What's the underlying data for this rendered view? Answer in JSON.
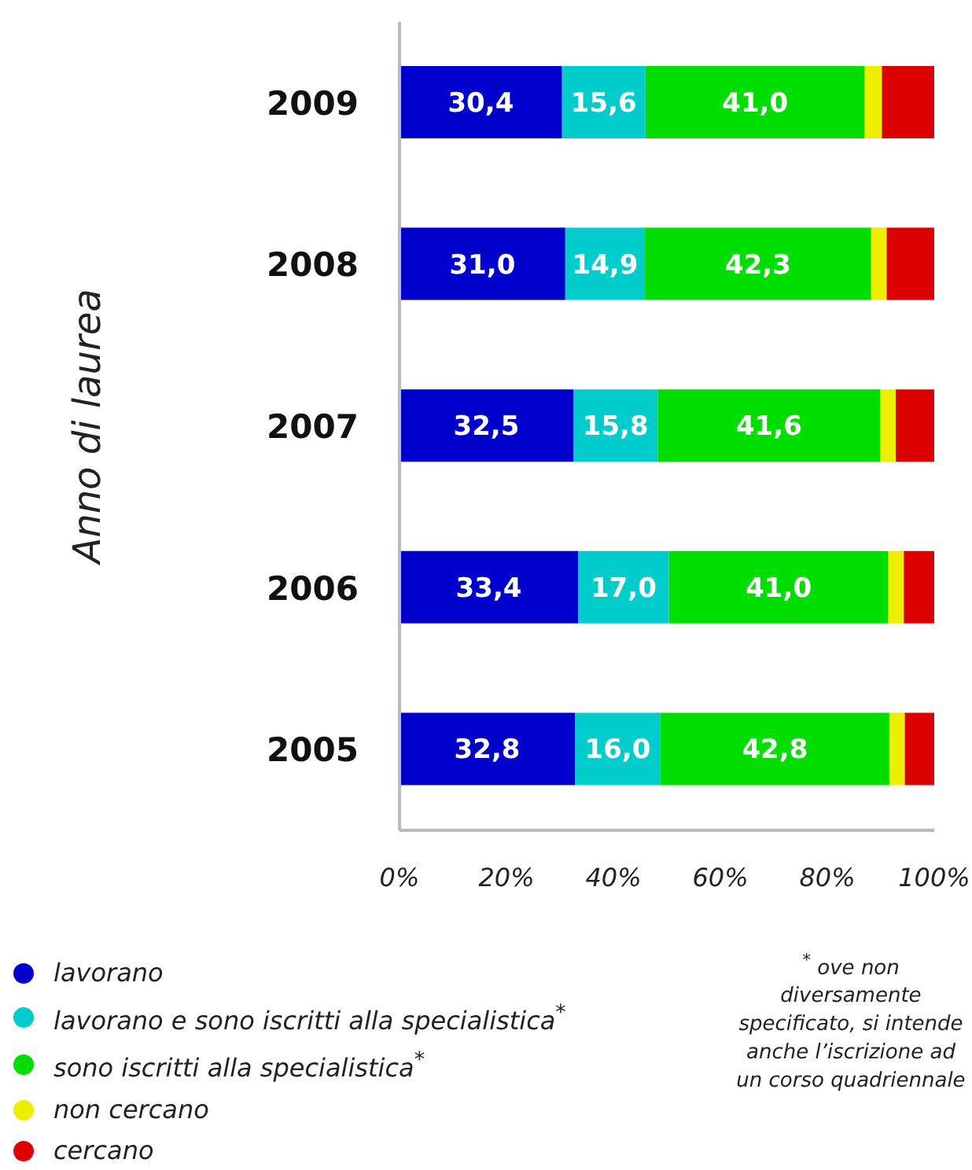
{
  "chart_data": {
    "type": "bar",
    "orientation": "horizontal",
    "stacked": true,
    "ylabel": "Anno di laurea",
    "categories": [
      "2009",
      "2008",
      "2007",
      "2006",
      "2005"
    ],
    "series": [
      {
        "name": "lavorano",
        "color": "#0000cc",
        "values": [
          30.4,
          31.0,
          32.5,
          33.4,
          32.8
        ],
        "value_labels": [
          "30,4",
          "31,0",
          "32,5",
          "33,4",
          "32,8"
        ]
      },
      {
        "name": "lavorano e sono iscritti alla specialistica$^{*}$",
        "color": "#00cccc",
        "values": [
          15.6,
          14.9,
          15.8,
          17.0,
          16.0
        ],
        "value_labels": [
          "15,6",
          "14,9",
          "15,8",
          "17,0",
          "16,0"
        ]
      },
      {
        "name": "sono iscritti alla specialistica$^{*}$",
        "color": "#00dd00",
        "values": [
          41.0,
          42.3,
          41.6,
          41.0,
          42.8
        ],
        "value_labels": [
          "41,0",
          "42,3",
          "41,6",
          "41,0",
          "42,8"
        ]
      },
      {
        "name": "non cercano",
        "color": "#eeee00",
        "values": [
          3.2,
          2.9,
          2.9,
          2.9,
          2.9
        ]
      },
      {
        "name": "cercano",
        "color": "#dd0000",
        "values": [
          9.8,
          8.9,
          7.2,
          5.7,
          5.5
        ]
      }
    ],
    "xlim": [
      0,
      100
    ],
    "xticks": [
      {
        "value": 0,
        "label": "0%"
      },
      {
        "value": 20,
        "label": "20%"
      },
      {
        "value": 40,
        "label": "40%"
      },
      {
        "value": 60,
        "label": "60%"
      },
      {
        "value": 80,
        "label": "80%"
      },
      {
        "value": 100,
        "label": "100%"
      }
    ],
    "grid": false,
    "legend": "bottom left",
    "annotations": [
      "$^{*}$ ove non diversamente specificato, si intende anche l’iscrizione ad un corso quadriennale"
    ]
  }
}
